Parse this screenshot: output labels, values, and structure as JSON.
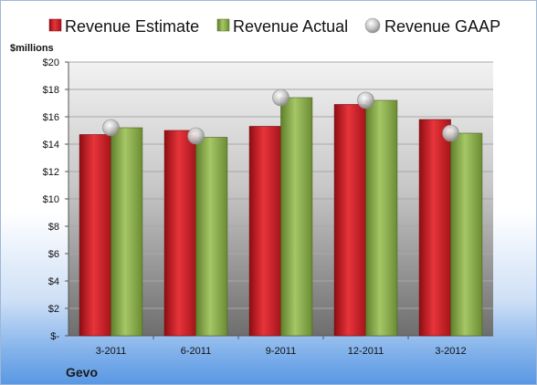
{
  "chart_data": {
    "type": "bar",
    "unit_label": "$millions",
    "company": "Gevo",
    "categories": [
      "3-2011",
      "6-2011",
      "9-2011",
      "12-2011",
      "3-2012"
    ],
    "series": [
      {
        "name": "Revenue Estimate",
        "kind": "bar",
        "color": "#d8232a",
        "values": [
          14.7,
          15.0,
          15.3,
          16.9,
          15.8
        ]
      },
      {
        "name": "Revenue Actual",
        "kind": "bar",
        "color": "#8fb64a",
        "values": [
          15.2,
          14.5,
          17.4,
          17.2,
          14.8
        ]
      },
      {
        "name": "Revenue GAAP",
        "kind": "marker",
        "color": "#c9c9c9",
        "values": [
          15.2,
          14.6,
          17.4,
          17.2,
          14.8
        ]
      }
    ],
    "ylim": [
      0,
      20
    ],
    "yticks": [
      0,
      2,
      4,
      6,
      8,
      10,
      12,
      14,
      16,
      18,
      20
    ],
    "ytick_labels": [
      "$-",
      "$2",
      "$4",
      "$6",
      "$8",
      "$10",
      "$12",
      "$14",
      "$16",
      "$18",
      "$20"
    ],
    "grid": true,
    "legend_position": "top"
  }
}
